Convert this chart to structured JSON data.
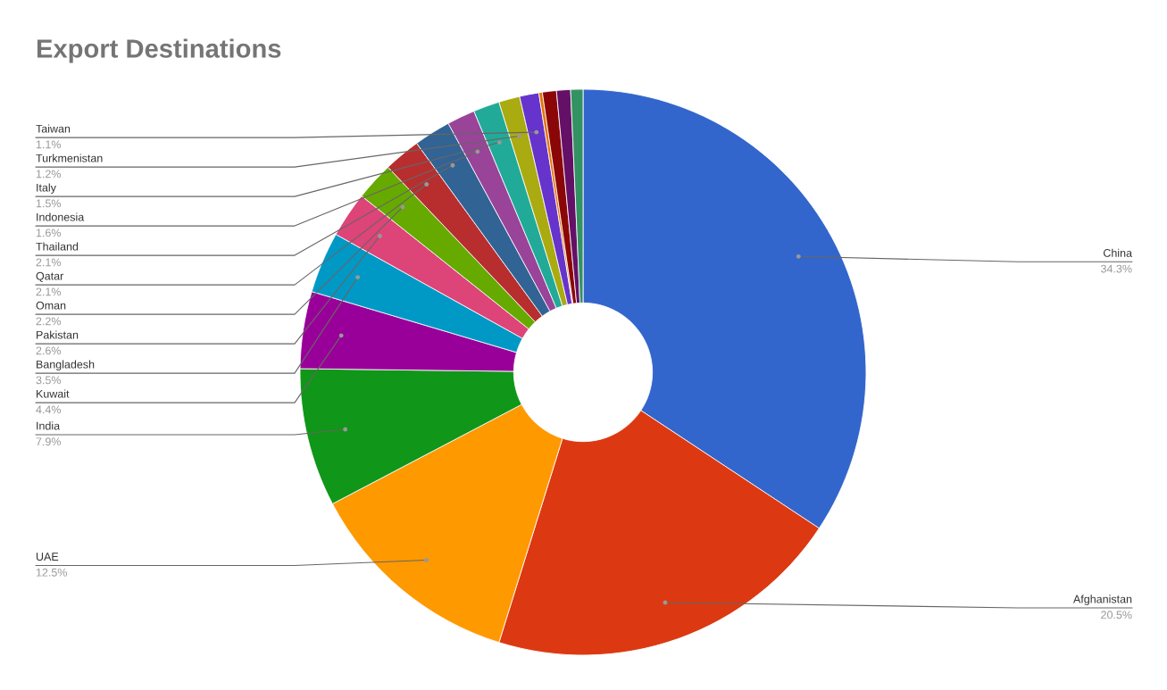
{
  "chart_data": {
    "type": "donut",
    "title": "Export Destinations",
    "categories": [
      "China",
      "Afghanistan",
      "UAE",
      "India",
      "Kuwait",
      "Bangladesh",
      "Pakistan",
      "Oman",
      "Qatar",
      "Thailand",
      "Indonesia",
      "Italy",
      "Turkmenistan",
      "Taiwan",
      null,
      null,
      null,
      null
    ],
    "values": [
      34.3,
      20.5,
      12.5,
      7.9,
      4.4,
      3.5,
      2.6,
      2.2,
      2.1,
      2.1,
      1.6,
      1.5,
      1.2,
      1.1,
      0.2,
      0.8,
      0.8,
      0.7
    ],
    "value_labels": [
      "34.3%",
      "20.5%",
      "12.5%",
      "7.9%",
      "4.4%",
      "3.5%",
      "2.6%",
      "2.2%",
      "2.1%",
      "2.1%",
      "1.6%",
      "1.5%",
      "1.2%",
      "1.1%",
      null,
      null,
      null,
      null
    ],
    "colors": [
      "#3366cc",
      "#dc3912",
      "#ff9900",
      "#109618",
      "#990099",
      "#0099c6",
      "#dd4477",
      "#66aa00",
      "#b82e2e",
      "#316395",
      "#994499",
      "#22aa99",
      "#aaaa11",
      "#6633cc",
      "#e67300",
      "#8b0707",
      "#651067",
      "#329262"
    ],
    "legend": false
  }
}
